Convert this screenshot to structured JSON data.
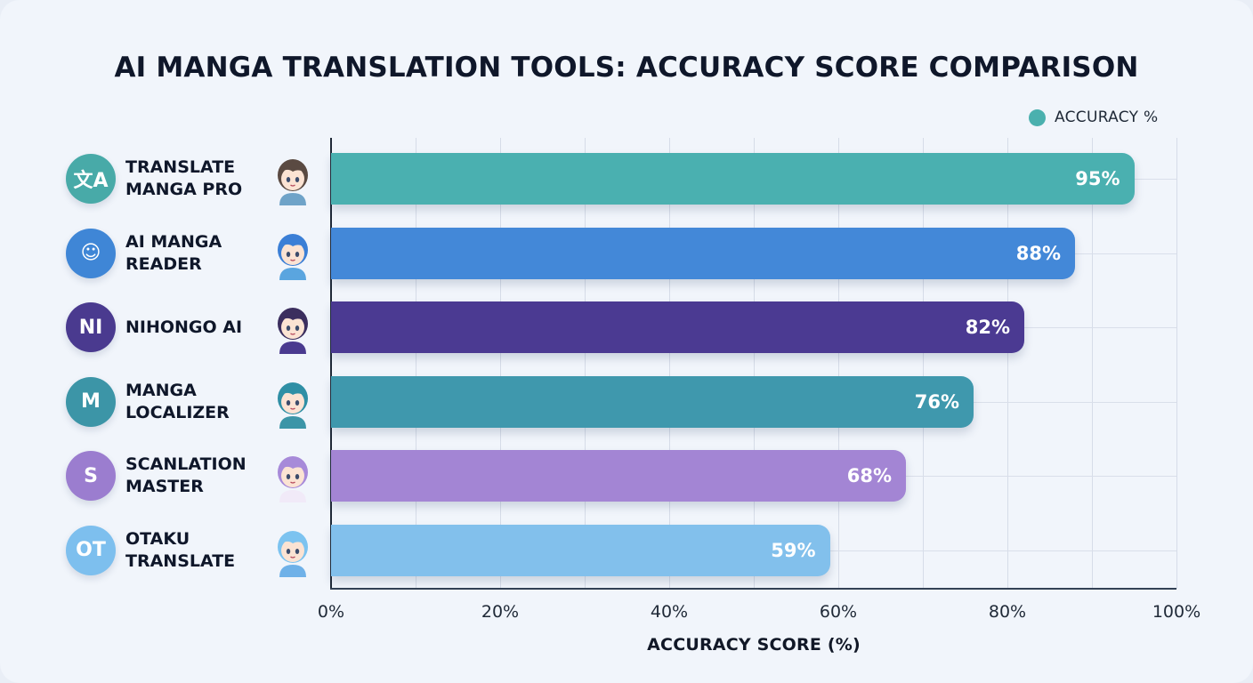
{
  "title": "AI MANGA TRANSLATION TOOLS: ACCURACY SCORE COMPARISON",
  "legend": {
    "label": "ACCURACY %",
    "color": "#4ab0ae"
  },
  "x_axis": {
    "label": "ACCURACY SCORE (%)",
    "ticks": [
      "0%",
      "20%",
      "40%",
      "60%",
      "80%",
      "100%"
    ]
  },
  "tools": [
    {
      "name": "TRANSLATE\nMANGA PRO",
      "value": 95,
      "value_label": "95%",
      "bar_color": "#4ab0b0",
      "logo_color": "#48aaa8",
      "logo_text": "文A",
      "logo_icon": "translate-icon",
      "avatar": "boy-waving-avatar"
    },
    {
      "name": "AI MANGA\nREADER",
      "value": 88,
      "value_label": "88%",
      "bar_color": "#4388d8",
      "logo_color": "#3f86d6",
      "logo_text": "☺",
      "logo_icon": "chat-bubble-icon",
      "avatar": "girl-reading-avatar"
    },
    {
      "name": "NIHONGO AI",
      "value": 82,
      "value_label": "82%",
      "bar_color": "#4b3a92",
      "logo_color": "#4a3a8f",
      "logo_text": "NI",
      "logo_icon": "ni-monogram-icon",
      "avatar": "kimono-girl-avatar"
    },
    {
      "name": "MANGA\nLOCALIZER",
      "value": 76,
      "value_label": "76%",
      "bar_color": "#3f98ad",
      "logo_color": "#3c95a7",
      "logo_text": "M",
      "logo_icon": "m-monogram-icon",
      "avatar": "teal-hair-boy-avatar"
    },
    {
      "name": "SCANLATION\nMASTER",
      "value": 68,
      "value_label": "68%",
      "bar_color": "#a385d4",
      "logo_color": "#9b7dcf",
      "logo_text": "S",
      "logo_icon": "s-monogram-icon",
      "avatar": "purple-hair-girl-avatar"
    },
    {
      "name": "OTAKU\nTRANSLATE",
      "value": 59,
      "value_label": "59%",
      "bar_color": "#82c0ec",
      "logo_color": "#7dbfee",
      "logo_text": "OT",
      "logo_icon": "ot-monogram-icon",
      "avatar": "light-blue-hair-boy-avatar"
    }
  ],
  "chart_data": {
    "type": "bar",
    "orientation": "horizontal",
    "title": "AI MANGA TRANSLATION TOOLS: ACCURACY SCORE COMPARISON",
    "categories": [
      "Translate Manga Pro",
      "AI Manga Reader",
      "Nihongo AI",
      "Manga Localizer",
      "Scanlation Master",
      "Otaku Translate"
    ],
    "series": [
      {
        "name": "ACCURACY %",
        "values": [
          95,
          88,
          82,
          76,
          68,
          59
        ]
      }
    ],
    "xlabel": "ACCURACY SCORE (%)",
    "ylabel": "",
    "xlim": [
      0,
      100
    ],
    "x_ticks": [
      "0%",
      "20%",
      "40%",
      "60%",
      "80%",
      "100%"
    ],
    "grid": true,
    "legend_position": "top-right",
    "data_labels": [
      "95%",
      "88%",
      "82%",
      "76%",
      "68%",
      "59%"
    ]
  }
}
